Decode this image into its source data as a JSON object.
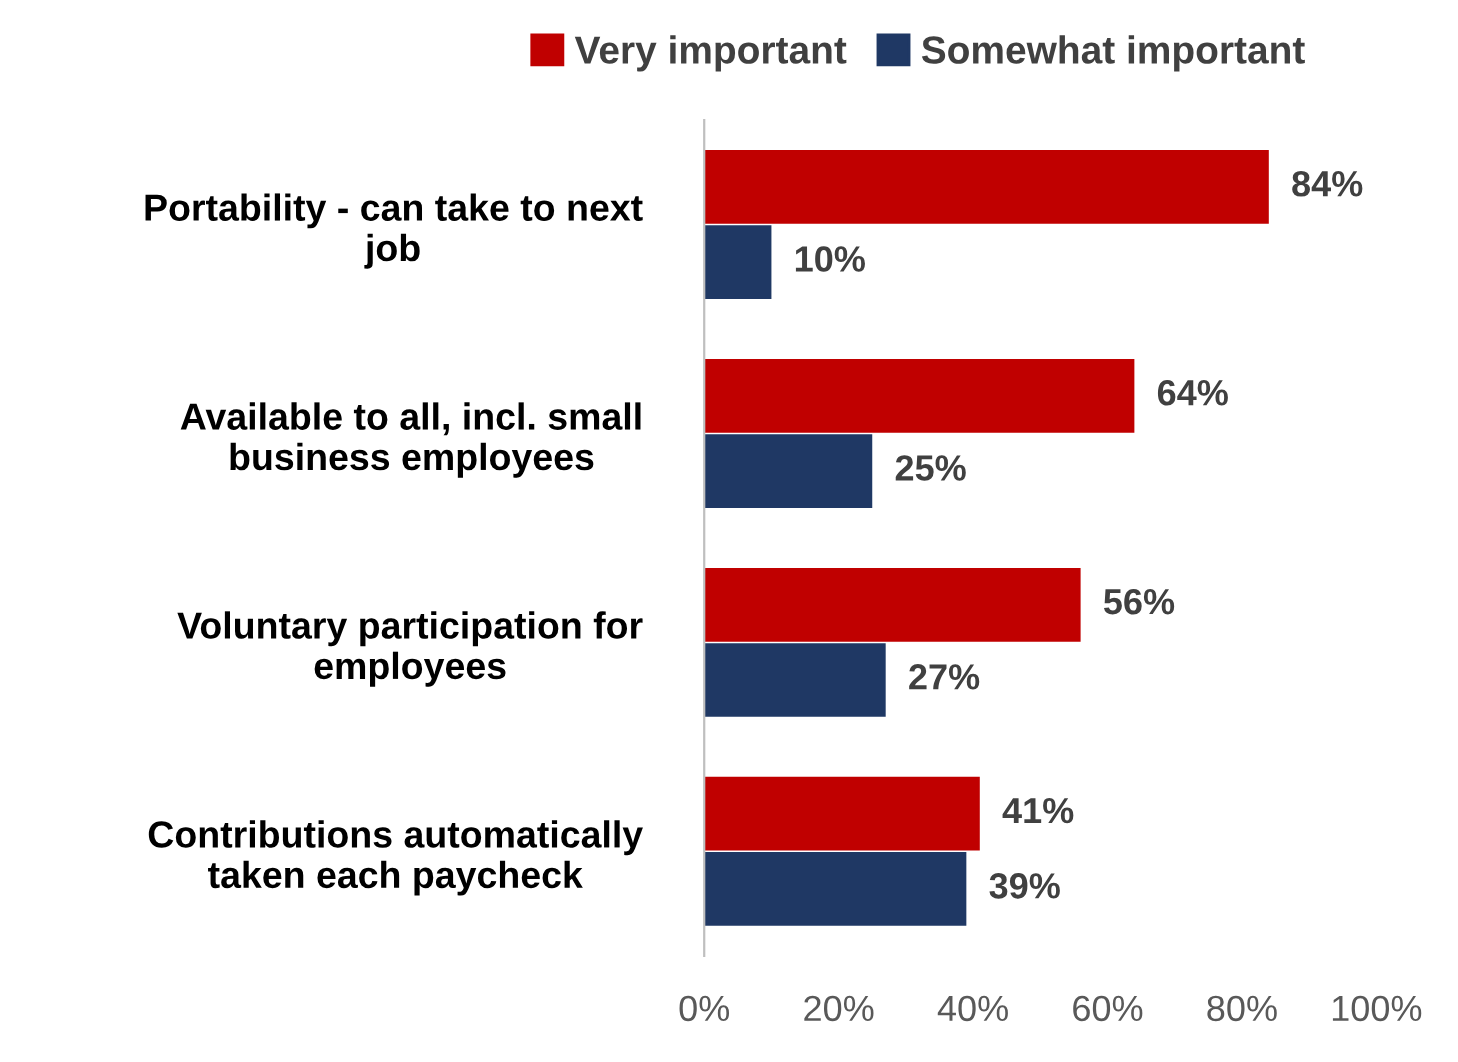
{
  "chart_data": {
    "type": "bar",
    "orientation": "horizontal",
    "categories": [
      "Portability - can take to next\njob",
      "Available to all, incl. small\nbusiness employees",
      "Voluntary participation for\nemployees",
      "Contributions automatically\ntaken each paycheck"
    ],
    "series": [
      {
        "name": "Very important",
        "color": "#c00000",
        "values": [
          84,
          64,
          56,
          41
        ],
        "value_labels": [
          "84%",
          "64%",
          "56%",
          "41%"
        ]
      },
      {
        "name": "Somewhat important",
        "color": "#1f3864",
        "values": [
          10,
          25,
          27,
          39
        ],
        "value_labels": [
          "10%",
          "25%",
          "27%",
          "39%"
        ]
      }
    ],
    "xlim": [
      0,
      100
    ],
    "xticks": [
      {
        "value": 0,
        "label": "0%"
      },
      {
        "value": 20,
        "label": "20%"
      },
      {
        "value": 40,
        "label": "40%"
      },
      {
        "value": 60,
        "label": "60%"
      },
      {
        "value": 80,
        "label": "80%"
      },
      {
        "value": 100,
        "label": "100%"
      }
    ],
    "grid": false,
    "legend": "top"
  }
}
